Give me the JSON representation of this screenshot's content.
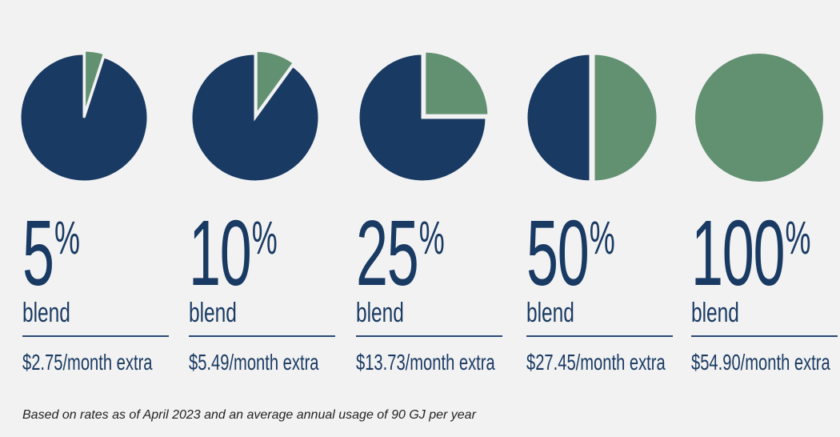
{
  "chart_data": {
    "type": "pie",
    "title": "",
    "colors": {
      "renewable": "#629172",
      "conventional": "#193a63",
      "separator": "#f2f2f2"
    },
    "series": [
      {
        "blend_percent": 5,
        "renewable": 5,
        "conventional": 95,
        "label": "5",
        "unit": "%",
        "sublabel": "blend",
        "price": "$2.75/month extra"
      },
      {
        "blend_percent": 10,
        "renewable": 10,
        "conventional": 90,
        "label": "10",
        "unit": "%",
        "sublabel": "blend",
        "price": "$5.49/month extra"
      },
      {
        "blend_percent": 25,
        "renewable": 25,
        "conventional": 75,
        "label": "25",
        "unit": "%",
        "sublabel": "blend",
        "price": "$13.73/month extra"
      },
      {
        "blend_percent": 50,
        "renewable": 50,
        "conventional": 50,
        "label": "50",
        "unit": "%",
        "sublabel": "blend",
        "price": "$27.45/month extra"
      },
      {
        "blend_percent": 100,
        "renewable": 100,
        "conventional": 0,
        "label": "100",
        "unit": "%",
        "sublabel": "blend",
        "price": "$54.90/month extra"
      }
    ]
  },
  "footnote": "Based on rates as of April 2023 and an average annual usage of 90 GJ per year"
}
